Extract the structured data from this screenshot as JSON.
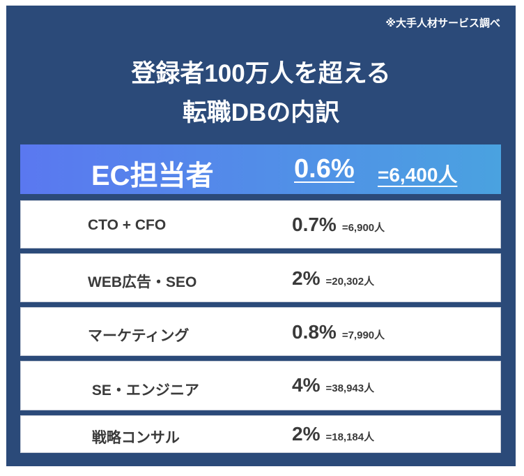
{
  "note": "※大手人材サービス調べ",
  "title": {
    "line1": "登録者100万人を超える",
    "line2": "転職DBの内訳"
  },
  "highlight": {
    "label": "EC担当者",
    "percent": "0.6%",
    "count": "=6,400人"
  },
  "rows": [
    {
      "label": "CTO + CFO",
      "percent": "0.7%",
      "count": "=6,900人"
    },
    {
      "label": "WEB広告・SEO",
      "percent": "2%",
      "count": "=20,302人"
    },
    {
      "label": "マーケティング",
      "percent": "0.8%",
      "count": "=7,990人"
    },
    {
      "label": " SE・エンジニア",
      "percent": "4%",
      "count": "=38,943人"
    },
    {
      "label": " 戦略コンサル",
      "percent": "2%",
      "count": "=18,184人"
    }
  ]
}
